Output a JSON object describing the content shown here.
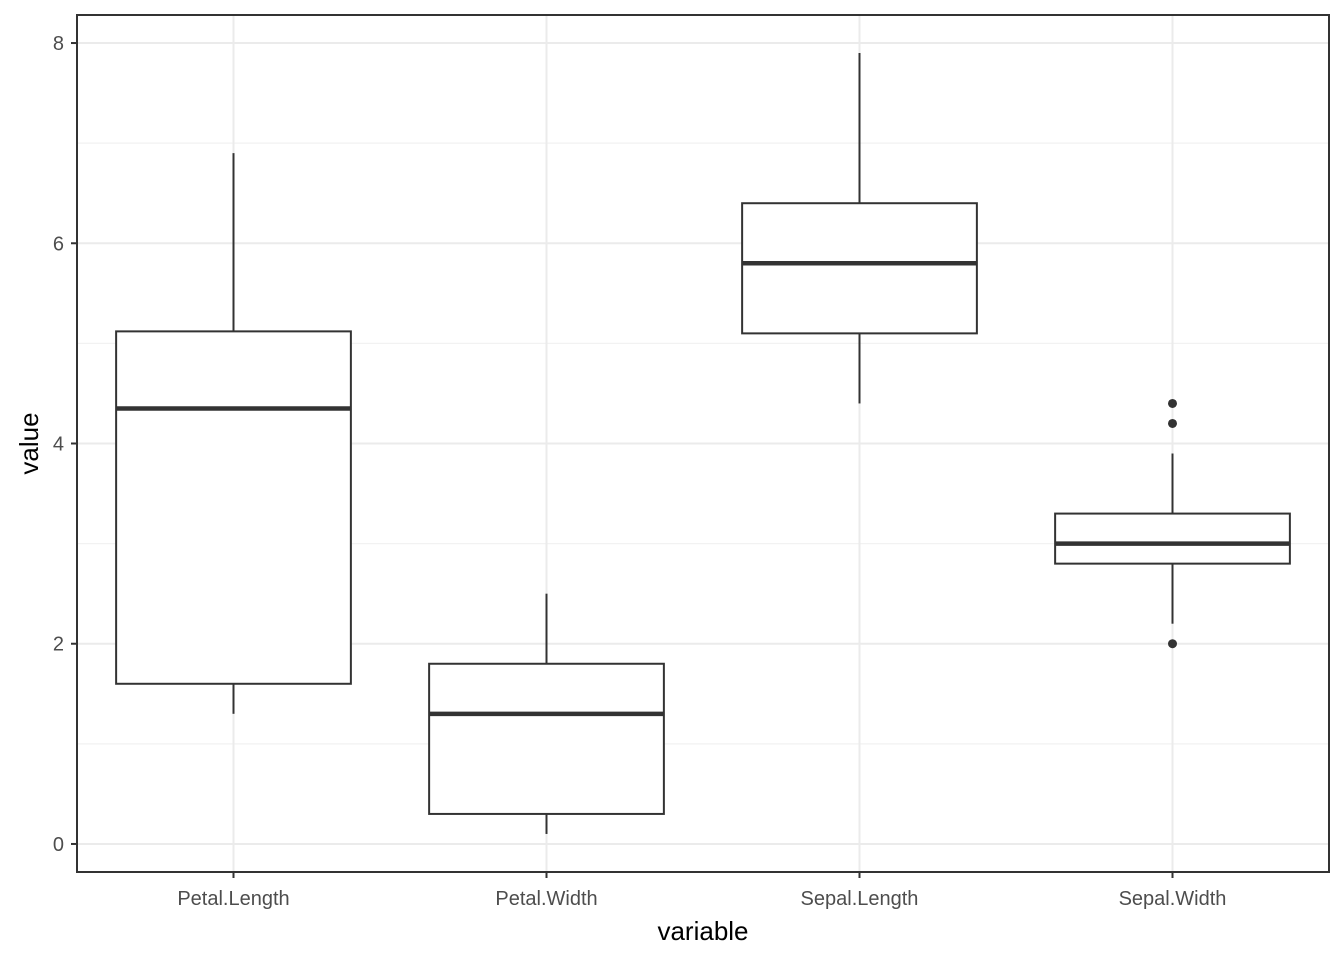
{
  "colors": {
    "background": "#ffffff",
    "panel_border": "#333333",
    "grid_major": "#ebebeb",
    "grid_minor": "#f2f2f2",
    "box_stroke": "#333333",
    "box_fill": "#ffffff",
    "outlier": "#333333",
    "tick_label": "#4d4d4d",
    "axis_title": "#000000"
  },
  "chart_data": {
    "type": "boxplot",
    "title": "",
    "xlabel": "variable",
    "ylabel": "value",
    "ylim": [
      -0.28,
      8.28
    ],
    "y_ticks": [
      0,
      2,
      4,
      6,
      8
    ],
    "y_minor_ticks": [
      1,
      3,
      5,
      7
    ],
    "grid": true,
    "legend": "none",
    "categories": [
      "Petal.Length",
      "Petal.Width",
      "Sepal.Length",
      "Sepal.Width"
    ],
    "boxes": [
      {
        "category": "Petal.Length",
        "min": 1.3,
        "q1": 1.6,
        "median": 4.35,
        "q3": 5.12,
        "max": 6.9,
        "outliers": []
      },
      {
        "category": "Petal.Width",
        "min": 0.1,
        "q1": 0.3,
        "median": 1.3,
        "q3": 1.8,
        "max": 2.5,
        "outliers": []
      },
      {
        "category": "Sepal.Length",
        "min": 4.4,
        "q1": 5.1,
        "median": 5.8,
        "q3": 6.4,
        "max": 7.9,
        "outliers": []
      },
      {
        "category": "Sepal.Width",
        "min": 2.2,
        "q1": 2.8,
        "median": 3.0,
        "q3": 3.3,
        "max": 3.9,
        "outliers": [
          4.4,
          4.2,
          2.0
        ]
      }
    ]
  }
}
